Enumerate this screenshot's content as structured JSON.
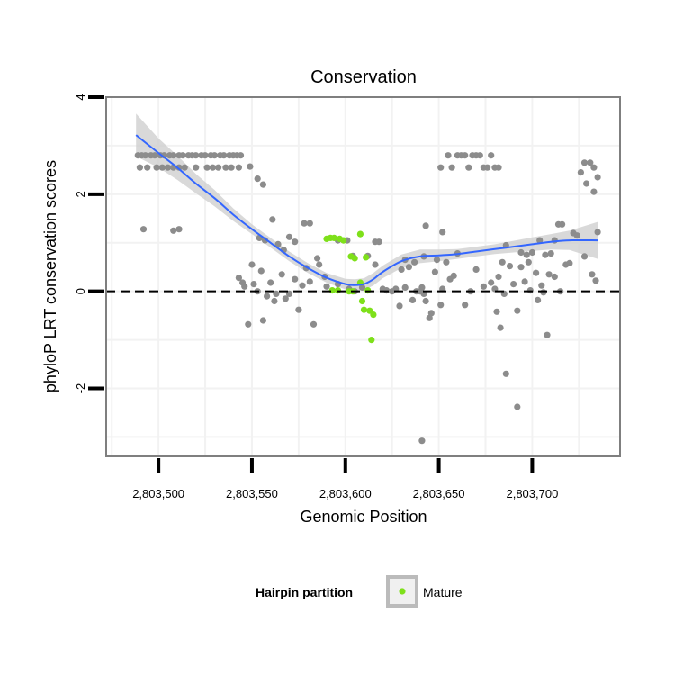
{
  "chart_data": {
    "type": "scatter",
    "title": "Conservation",
    "xlabel": "Genomic Position",
    "ylabel": "phyloP LRT conservation scores",
    "xlim": [
      2803472,
      2803747
    ],
    "ylim": [
      -3.4,
      4.0
    ],
    "x_ticks": [
      2803500,
      2803550,
      2803600,
      2803650,
      2803700
    ],
    "x_tick_labels": [
      "2,803,500",
      "2,803,550",
      "2,803,600",
      "2,803,650",
      "2,803,700"
    ],
    "y_ticks": [
      -2,
      0,
      2,
      4
    ],
    "y_tick_labels": [
      "-2",
      "0",
      "2",
      "4"
    ],
    "reference_line": {
      "y": 0,
      "style": "dashed"
    },
    "colors": {
      "other_points": "#8c8c8c",
      "mature_points": "#7ee01a",
      "smooth_line": "#3366ff",
      "ribbon": "#cccccc",
      "panel_border": "#7f7f7f",
      "grid": "#f2f2f2"
    },
    "legend": {
      "title": "Hairpin partition",
      "entries": [
        {
          "label": "Mature",
          "color": "#7ee01a"
        }
      ],
      "position": "bottom"
    },
    "series": [
      {
        "name": "Other",
        "points": [
          [
            2803489,
            2.8
          ],
          [
            2803491,
            2.8
          ],
          [
            2803493,
            2.8
          ],
          [
            2803496,
            2.8
          ],
          [
            2803498,
            2.8
          ],
          [
            2803501,
            2.8
          ],
          [
            2803503,
            2.8
          ],
          [
            2803506,
            2.8
          ],
          [
            2803508,
            2.8
          ],
          [
            2803511,
            2.8
          ],
          [
            2803513,
            2.8
          ],
          [
            2803516,
            2.8
          ],
          [
            2803518,
            2.8
          ],
          [
            2803520,
            2.8
          ],
          [
            2803523,
            2.8
          ],
          [
            2803525,
            2.8
          ],
          [
            2803528,
            2.8
          ],
          [
            2803530,
            2.8
          ],
          [
            2803533,
            2.8
          ],
          [
            2803535,
            2.8
          ],
          [
            2803538,
            2.8
          ],
          [
            2803540,
            2.8
          ],
          [
            2803542,
            2.8
          ],
          [
            2803544,
            2.8
          ],
          [
            2803490,
            2.55
          ],
          [
            2803494,
            2.55
          ],
          [
            2803499,
            2.55
          ],
          [
            2803502,
            2.55
          ],
          [
            2803505,
            2.55
          ],
          [
            2803508,
            2.55
          ],
          [
            2803511,
            2.55
          ],
          [
            2803514,
            2.55
          ],
          [
            2803520,
            2.55
          ],
          [
            2803526,
            2.55
          ],
          [
            2803529,
            2.55
          ],
          [
            2803532,
            2.55
          ],
          [
            2803536,
            2.55
          ],
          [
            2803539,
            2.55
          ],
          [
            2803543,
            2.55
          ],
          [
            2803492,
            1.28
          ],
          [
            2803508,
            1.25
          ],
          [
            2803511,
            1.28
          ],
          [
            2803549,
            2.57
          ],
          [
            2803553,
            2.32
          ],
          [
            2803556,
            2.2
          ],
          [
            2803554,
            1.1
          ],
          [
            2803557,
            1.05
          ],
          [
            2803561,
            1.48
          ],
          [
            2803564,
            0.97
          ],
          [
            2803567,
            0.85
          ],
          [
            2803570,
            1.12
          ],
          [
            2803573,
            1.02
          ],
          [
            2803578,
            1.4
          ],
          [
            2803581,
            1.4
          ],
          [
            2803585,
            0.68
          ],
          [
            2803596,
            1.05
          ],
          [
            2803601,
            1.05
          ],
          [
            2803604,
            0.73
          ],
          [
            2803612,
            0.73
          ],
          [
            2803618,
            1.02
          ],
          [
            2803543,
            0.28
          ],
          [
            2803545,
            0.18
          ],
          [
            2803546,
            0.1
          ],
          [
            2803548,
            -0.68
          ],
          [
            2803550,
            0.55
          ],
          [
            2803551,
            0.15
          ],
          [
            2803553,
            0.0
          ],
          [
            2803555,
            0.42
          ],
          [
            2803556,
            -0.6
          ],
          [
            2803558,
            -0.1
          ],
          [
            2803560,
            0.18
          ],
          [
            2803562,
            -0.2
          ],
          [
            2803563,
            -0.05
          ],
          [
            2803566,
            0.35
          ],
          [
            2803568,
            -0.15
          ],
          [
            2803570,
            -0.05
          ],
          [
            2803573,
            0.25
          ],
          [
            2803575,
            -0.38
          ],
          [
            2803577,
            0.12
          ],
          [
            2803579,
            0.48
          ],
          [
            2803581,
            0.2
          ],
          [
            2803583,
            -0.68
          ],
          [
            2803586,
            0.55
          ],
          [
            2803589,
            0.3
          ],
          [
            2803590,
            0.1
          ],
          [
            2803596,
            0.15
          ],
          [
            2803602,
            0.05
          ],
          [
            2803605,
            0.0
          ],
          [
            2803609,
            0.08
          ],
          [
            2803616,
            0.55
          ],
          [
            2803620,
            0.05
          ],
          [
            2803622,
            0.02
          ],
          [
            2803625,
            0.0
          ],
          [
            2803627,
            0.05
          ],
          [
            2803629,
            -0.3
          ],
          [
            2803630,
            0.45
          ],
          [
            2803632,
            0.08
          ],
          [
            2803634,
            0.5
          ],
          [
            2803636,
            -0.18
          ],
          [
            2803638,
            0.0
          ],
          [
            2803640,
            0.0
          ],
          [
            2803641,
            0.08
          ],
          [
            2803642,
            -0.05
          ],
          [
            2803643,
            -0.2
          ],
          [
            2803645,
            -0.55
          ],
          [
            2803646,
            -0.45
          ],
          [
            2803648,
            0.4
          ],
          [
            2803649,
            0.65
          ],
          [
            2803651,
            -0.28
          ],
          [
            2803652,
            0.05
          ],
          [
            2803654,
            0.6
          ],
          [
            2803656,
            0.25
          ],
          [
            2803658,
            0.32
          ],
          [
            2803660,
            0.78
          ],
          [
            2803664,
            -0.28
          ],
          [
            2803667,
            0.0
          ],
          [
            2803670,
            0.45
          ],
          [
            2803674,
            0.1
          ],
          [
            2803678,
            0.18
          ],
          [
            2803680,
            0.05
          ],
          [
            2803682,
            0.3
          ],
          [
            2803684,
            0.6
          ],
          [
            2803685,
            -0.05
          ],
          [
            2803686,
            0.95
          ],
          [
            2803688,
            0.52
          ],
          [
            2803690,
            0.15
          ],
          [
            2803692,
            -0.4
          ],
          [
            2803694,
            0.5
          ],
          [
            2803696,
            0.2
          ],
          [
            2803698,
            0.6
          ],
          [
            2803699,
            0.02
          ],
          [
            2803702,
            0.38
          ],
          [
            2803703,
            -0.18
          ],
          [
            2803705,
            0.12
          ],
          [
            2803706,
            -0.02
          ],
          [
            2803708,
            -0.9
          ],
          [
            2803709,
            0.35
          ],
          [
            2803712,
            0.3
          ],
          [
            2803715,
            0.0
          ],
          [
            2803718,
            0.55
          ],
          [
            2803720,
            0.58
          ],
          [
            2803722,
            1.2
          ],
          [
            2803724,
            1.15
          ],
          [
            2803728,
            0.72
          ],
          [
            2803732,
            0.35
          ],
          [
            2803734,
            0.22
          ],
          [
            2803735,
            1.22
          ],
          [
            2803616,
            1.02
          ],
          [
            2803632,
            0.65
          ],
          [
            2803637,
            0.6
          ],
          [
            2803642,
            0.72
          ],
          [
            2803652,
            1.22
          ],
          [
            2803681,
            -0.42
          ],
          [
            2803683,
            -0.75
          ],
          [
            2803686,
            -1.7
          ],
          [
            2803692,
            -2.38
          ],
          [
            2803641,
            -3.08
          ],
          [
            2803643,
            1.35
          ],
          [
            2803704,
            1.05
          ],
          [
            2803707,
            0.75
          ],
          [
            2803710,
            0.78
          ],
          [
            2803712,
            1.05
          ],
          [
            2803714,
            1.38
          ],
          [
            2803716,
            1.38
          ],
          [
            2803700,
            0.8
          ],
          [
            2803697,
            0.75
          ],
          [
            2803694,
            0.8
          ],
          [
            2803726,
            2.45
          ],
          [
            2803728,
            2.65
          ],
          [
            2803731,
            2.65
          ],
          [
            2803733,
            2.55
          ],
          [
            2803735,
            2.35
          ],
          [
            2803729,
            2.22
          ],
          [
            2803733,
            2.05
          ],
          [
            2803651,
            2.55
          ],
          [
            2803655,
            2.8
          ],
          [
            2803657,
            2.55
          ],
          [
            2803660,
            2.8
          ],
          [
            2803662,
            2.8
          ],
          [
            2803664,
            2.8
          ],
          [
            2803666,
            2.55
          ],
          [
            2803668,
            2.8
          ],
          [
            2803670,
            2.8
          ],
          [
            2803672,
            2.8
          ],
          [
            2803674,
            2.55
          ],
          [
            2803676,
            2.55
          ],
          [
            2803678,
            2.8
          ],
          [
            2803680,
            2.55
          ],
          [
            2803682,
            2.55
          ]
        ]
      },
      {
        "name": "Mature",
        "points": [
          [
            2803590,
            1.08
          ],
          [
            2803592,
            1.1
          ],
          [
            2803594,
            1.1
          ],
          [
            2803597,
            1.08
          ],
          [
            2803599,
            1.05
          ],
          [
            2803603,
            0.72
          ],
          [
            2803605,
            0.68
          ],
          [
            2803608,
            1.18
          ],
          [
            2803611,
            0.7
          ],
          [
            2803593,
            0.02
          ],
          [
            2803596,
            0.02
          ],
          [
            2803602,
            0.0
          ],
          [
            2803604,
            0.0
          ],
          [
            2803608,
            0.18
          ],
          [
            2803609,
            -0.2
          ],
          [
            2803610,
            -0.38
          ],
          [
            2803612,
            0.02
          ],
          [
            2803613,
            -0.4
          ],
          [
            2803615,
            -0.48
          ],
          [
            2803614,
            -1.0
          ]
        ]
      }
    ],
    "smooth_fit": {
      "method": "loess",
      "x": [
        2803488,
        2803500,
        2803510,
        2803520,
        2803530,
        2803540,
        2803550,
        2803560,
        2803570,
        2803580,
        2803590,
        2803600,
        2803605,
        2803610,
        2803615,
        2803620,
        2803630,
        2803640,
        2803650,
        2803660,
        2803670,
        2803680,
        2803690,
        2803700,
        2803710,
        2803720,
        2803735
      ],
      "y": [
        3.22,
        2.85,
        2.55,
        2.22,
        1.92,
        1.58,
        1.28,
        1.0,
        0.72,
        0.48,
        0.28,
        0.15,
        0.13,
        0.15,
        0.25,
        0.4,
        0.62,
        0.72,
        0.74,
        0.77,
        0.82,
        0.87,
        0.92,
        0.97,
        1.02,
        1.05,
        1.05
      ],
      "lower": [
        2.78,
        2.55,
        2.3,
        2.02,
        1.75,
        1.45,
        1.18,
        0.9,
        0.62,
        0.38,
        0.18,
        0.04,
        0.01,
        0.03,
        0.12,
        0.27,
        0.48,
        0.58,
        0.62,
        0.67,
        0.72,
        0.77,
        0.8,
        0.83,
        0.86,
        0.85,
        0.67
      ],
      "upper": [
        3.66,
        3.15,
        2.8,
        2.42,
        2.09,
        1.71,
        1.38,
        1.1,
        0.82,
        0.58,
        0.38,
        0.26,
        0.25,
        0.27,
        0.38,
        0.53,
        0.76,
        0.86,
        0.86,
        0.87,
        0.92,
        0.97,
        1.04,
        1.11,
        1.18,
        1.25,
        1.43
      ]
    }
  }
}
